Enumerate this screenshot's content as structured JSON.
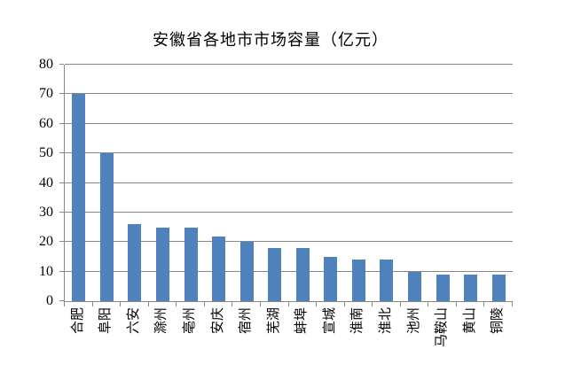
{
  "chart_data": {
    "type": "bar",
    "title": "安徽省各地市市场容量（亿元）",
    "categories": [
      "合肥",
      "阜阳",
      "六安",
      "滁州",
      "亳州",
      "安庆",
      "宿州",
      "芜湖",
      "蚌埠",
      "宣城",
      "淮南",
      "淮北",
      "池州",
      "马鞍山",
      "黄山",
      "铜陵"
    ],
    "values": [
      70,
      50,
      26,
      25,
      25,
      22,
      20,
      18,
      18,
      15,
      14,
      14,
      10,
      9,
      9,
      9
    ],
    "xlabel": "",
    "ylabel": "",
    "ylim": [
      0,
      80
    ],
    "y_tick_step": 10,
    "y_ticks": [
      0,
      10,
      20,
      30,
      40,
      50,
      60,
      70,
      80
    ],
    "grid": true,
    "legend_position": "none",
    "bar_color": "#4F81BD",
    "gridline_color": "#878787",
    "axis_color": "#878787",
    "text_color": "#000000",
    "background_color": "#FFFFFF"
  }
}
